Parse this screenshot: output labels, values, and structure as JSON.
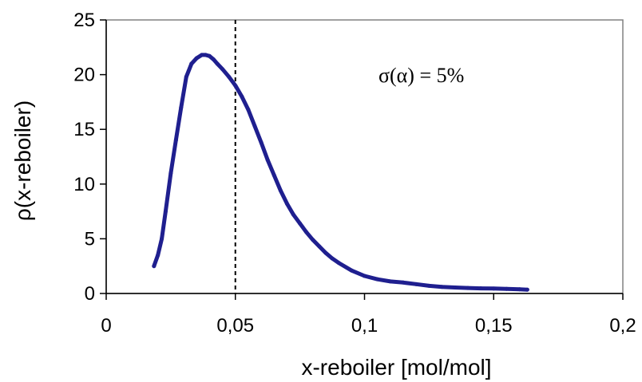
{
  "chart_data": {
    "type": "line",
    "title": "",
    "xlabel": "x-reboiler [mol/mol]",
    "ylabel": "ρ(x-reboiler)",
    "xlim": [
      0,
      0.2
    ],
    "ylim": [
      0,
      25
    ],
    "x_ticks": [
      0,
      0.05,
      0.1,
      0.15,
      0.2
    ],
    "x_tick_labels": [
      "0",
      "0,05",
      "0,1",
      "0,15",
      "0,2"
    ],
    "y_ticks": [
      0,
      5,
      10,
      15,
      20,
      25
    ],
    "y_tick_labels": [
      "0",
      "5",
      "10",
      "15",
      "20",
      "25"
    ],
    "grid": false,
    "legend": "none",
    "series_color": "#1f1f8f",
    "reference_line": {
      "x": 0.05,
      "style": "dashed",
      "color": "#000000"
    },
    "annotation": {
      "text": "σ(α) = 5%"
    },
    "series": [
      {
        "x": [
          0.0185,
          0.02,
          0.0215,
          0.023,
          0.025,
          0.027,
          0.029,
          0.031,
          0.033,
          0.035,
          0.037,
          0.0385,
          0.04,
          0.0415,
          0.043,
          0.045,
          0.0475,
          0.05,
          0.0525,
          0.055,
          0.0575,
          0.06,
          0.0625,
          0.065,
          0.0675,
          0.07,
          0.0725,
          0.075,
          0.0775,
          0.08,
          0.0825,
          0.085,
          0.0875,
          0.09,
          0.095,
          0.1,
          0.105,
          0.11,
          0.115,
          0.12,
          0.125,
          0.13,
          0.135,
          0.14,
          0.145,
          0.15,
          0.155,
          0.16,
          0.163
        ],
        "y": [
          2.5,
          3.5,
          5.0,
          7.5,
          11.0,
          14.0,
          17.0,
          19.8,
          21.0,
          21.5,
          21.8,
          21.8,
          21.7,
          21.4,
          21.0,
          20.5,
          19.8,
          19.0,
          18.0,
          16.8,
          15.3,
          13.8,
          12.2,
          10.8,
          9.4,
          8.2,
          7.2,
          6.4,
          5.6,
          4.9,
          4.3,
          3.7,
          3.2,
          2.8,
          2.1,
          1.6,
          1.3,
          1.1,
          1.0,
          0.85,
          0.7,
          0.6,
          0.55,
          0.5,
          0.47,
          0.45,
          0.42,
          0.38,
          0.35
        ]
      }
    ]
  }
}
